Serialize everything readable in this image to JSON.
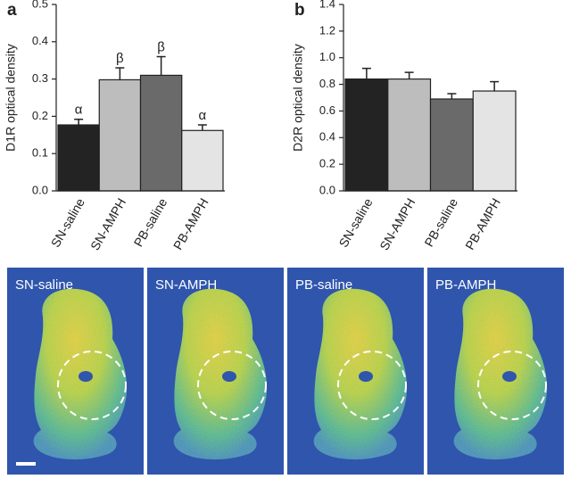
{
  "chart_data": [
    {
      "type": "bar",
      "panel_label": "a",
      "ylabel": "D1R optical density",
      "categories": [
        "SN-saline",
        "SN-AMPH",
        "PB-saline",
        "PB-AMPH"
      ],
      "values": [
        0.177,
        0.298,
        0.31,
        0.162
      ],
      "errors": [
        0.015,
        0.032,
        0.05,
        0.015
      ],
      "annotations": [
        "α",
        "β",
        "β",
        "α"
      ],
      "colors": [
        "#232323",
        "#bdbdbd",
        "#6a6a6a",
        "#e4e4e4"
      ],
      "ylim": [
        0,
        0.5
      ],
      "yticks": [
        {
          "value": 0,
          "label": "0.0"
        },
        0.1,
        0.2,
        0.3,
        0.4,
        0.5
      ]
    },
    {
      "type": "bar",
      "panel_label": "b",
      "ylabel": "D2R optical density",
      "categories": [
        "SN-saline",
        "SN-AMPH",
        "PB-saline",
        "PB-AMPH"
      ],
      "values": [
        0.84,
        0.84,
        0.69,
        0.75
      ],
      "errors": [
        0.08,
        0.05,
        0.04,
        0.07
      ],
      "colors": [
        "#232323",
        "#bdbdbd",
        "#6a6a6a",
        "#e4e4e4"
      ],
      "ylim": [
        0,
        1.4
      ],
      "yticks": [
        {
          "value": 0,
          "label": "0.0"
        },
        0.2,
        0.4,
        0.6,
        0.8,
        {
          "value": 1,
          "label": "1.0"
        },
        1.2,
        1.4
      ]
    }
  ],
  "images": [
    {
      "label": "SN-saline"
    },
    {
      "label": "SN-AMPH"
    },
    {
      "label": "PB-saline"
    },
    {
      "label": "PB-AMPH"
    }
  ]
}
